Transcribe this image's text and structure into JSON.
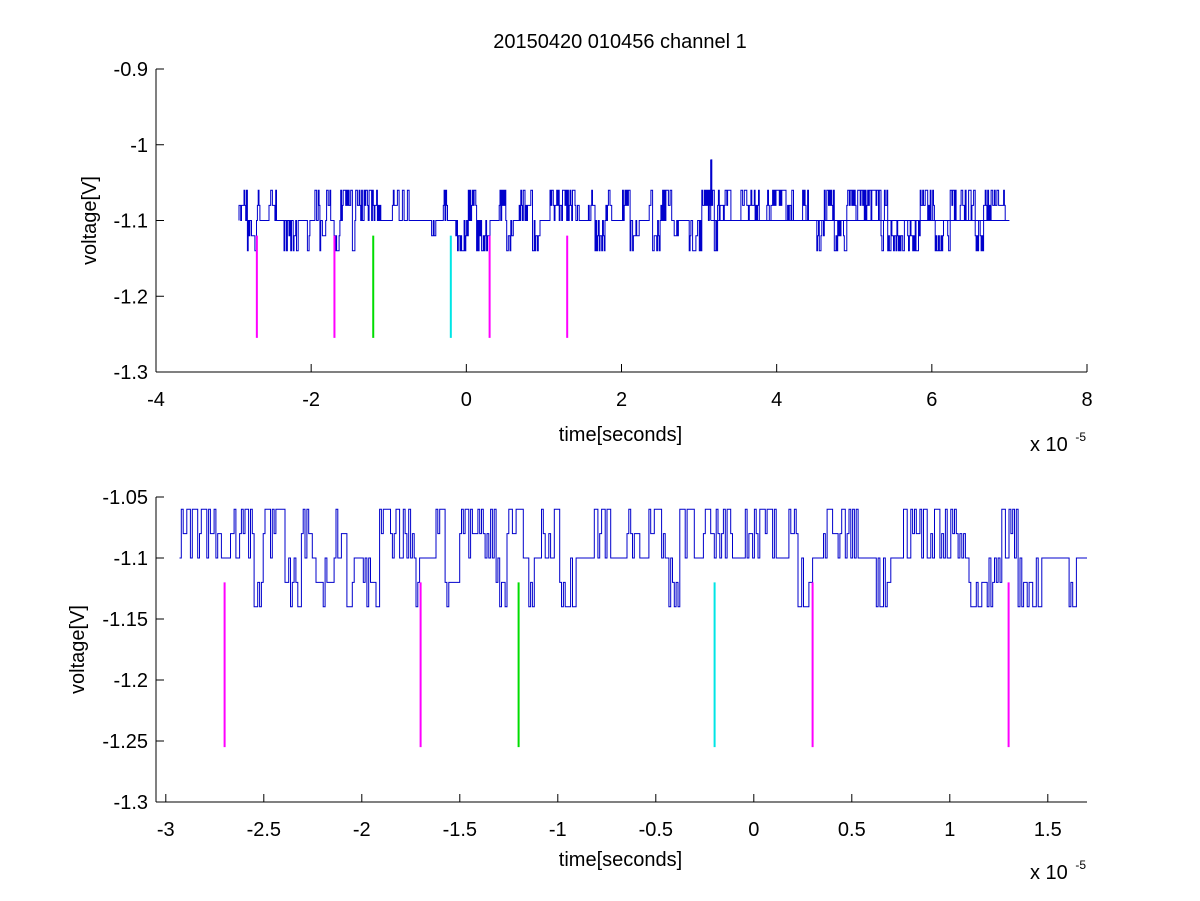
{
  "figure": {
    "title": "20150420 010456 channel 1"
  },
  "chart_data": [
    {
      "type": "line",
      "xlabel": "time[seconds]",
      "ylabel": "voltage[V]",
      "x_multiplier_label": "x 10",
      "x_multiplier_exponent": "-5",
      "xlim": [
        -4,
        8
      ],
      "ylim": [
        -1.3,
        -0.9
      ],
      "xticks": [
        -4,
        -2,
        0,
        2,
        4,
        6,
        8
      ],
      "xtick_labels": [
        "-4",
        "-2",
        "0",
        "2",
        "4",
        "6",
        "8"
      ],
      "yticks": [
        -1.3,
        -1.2,
        -1.1,
        -1,
        -0.9
      ],
      "ytick_labels": [
        "-1.3",
        "-1.2",
        "-1.1",
        "-1",
        "-0.9"
      ],
      "grid": false,
      "series": [
        {
          "color": "#0000cc",
          "kind": "noise-trace",
          "x_range": [
            -2.93,
            7.0
          ],
          "baseline": -1.1,
          "levels": [
            -1.14,
            -1.12,
            -1.1,
            -1.08,
            -1.06
          ],
          "spike": {
            "x": 3.15,
            "y": -1.02
          }
        }
      ],
      "markers": [
        {
          "x": -2.7,
          "y_top": -1.12,
          "y_bottom": -1.255,
          "color": "#ff00ff"
        },
        {
          "x": -1.7,
          "y_top": -1.12,
          "y_bottom": -1.255,
          "color": "#ff00ff"
        },
        {
          "x": -1.2,
          "y_top": -1.12,
          "y_bottom": -1.255,
          "color": "#00dd00"
        },
        {
          "x": -0.2,
          "y_top": -1.12,
          "y_bottom": -1.255,
          "color": "#00e5e5"
        },
        {
          "x": 0.3,
          "y_top": -1.12,
          "y_bottom": -1.255,
          "color": "#ff00ff"
        },
        {
          "x": 1.3,
          "y_top": -1.12,
          "y_bottom": -1.255,
          "color": "#ff00ff"
        }
      ]
    },
    {
      "type": "line",
      "xlabel": "time[seconds]",
      "ylabel": "voltage[V]",
      "x_multiplier_label": "x 10",
      "x_multiplier_exponent": "-5",
      "xlim": [
        -3.05,
        1.7
      ],
      "ylim": [
        -1.3,
        -1.05
      ],
      "xticks": [
        -3,
        -2.5,
        -2,
        -1.5,
        -1,
        -0.5,
        0,
        0.5,
        1,
        1.5
      ],
      "xtick_labels": [
        "-3",
        "-2.5",
        "-2",
        "-1.5",
        "-1",
        "-0.5",
        "0",
        "0.5",
        "1",
        "1.5"
      ],
      "yticks": [
        -1.3,
        -1.25,
        -1.2,
        -1.15,
        -1.1,
        -1.05
      ],
      "ytick_labels": [
        "-1.3",
        "-1.25",
        "-1.2",
        "-1.15",
        "-1.1",
        "-1.05"
      ],
      "grid": false,
      "series": [
        {
          "color": "#0000cc",
          "kind": "noise-trace",
          "x_range": [
            -2.93,
            1.7
          ],
          "baseline": -1.1,
          "levels": [
            -1.14,
            -1.12,
            -1.1,
            -1.08,
            -1.06
          ]
        }
      ],
      "markers": [
        {
          "x": -2.7,
          "y_top": -1.12,
          "y_bottom": -1.255,
          "color": "#ff00ff"
        },
        {
          "x": -1.7,
          "y_top": -1.12,
          "y_bottom": -1.255,
          "color": "#ff00ff"
        },
        {
          "x": -1.2,
          "y_top": -1.12,
          "y_bottom": -1.255,
          "color": "#00dd00"
        },
        {
          "x": -0.2,
          "y_top": -1.12,
          "y_bottom": -1.255,
          "color": "#00e5e5"
        },
        {
          "x": 0.3,
          "y_top": -1.12,
          "y_bottom": -1.255,
          "color": "#ff00ff"
        },
        {
          "x": 1.3,
          "y_top": -1.12,
          "y_bottom": -1.255,
          "color": "#ff00ff"
        }
      ]
    }
  ]
}
